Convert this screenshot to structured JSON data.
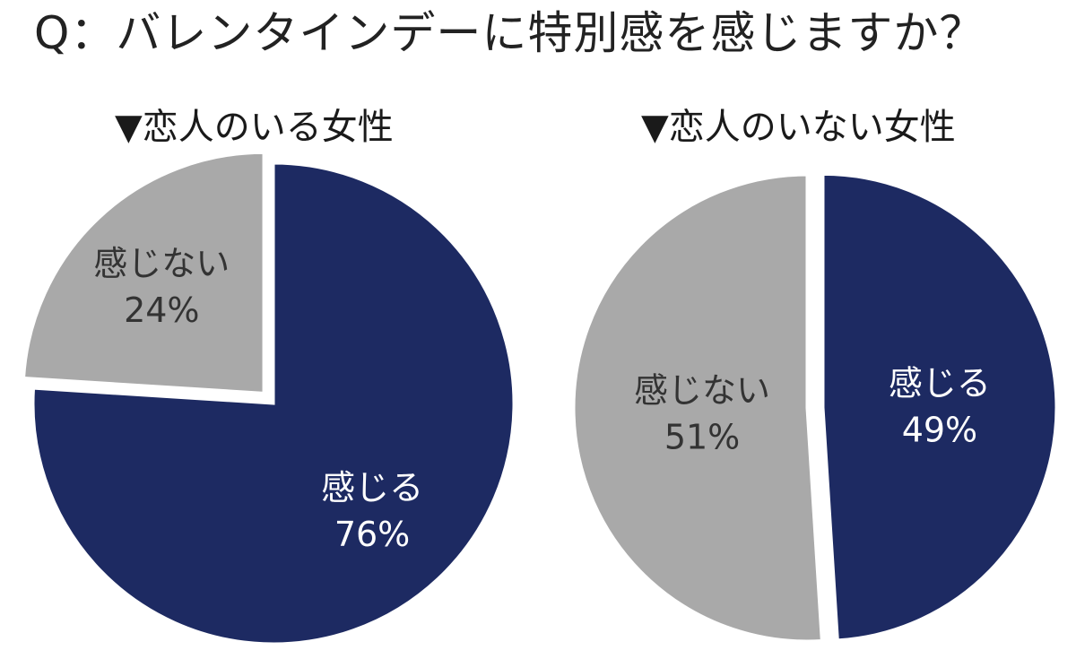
{
  "title": "Q：バレンタインデーに特別感を感じますか？",
  "colors": {
    "feel": "#1d2a62",
    "not_feel": "#a9a9a9",
    "label_on_dark": "#ffffff",
    "label_on_light": "#333333"
  },
  "chart_data": [
    {
      "type": "pie",
      "title": "▼恋人のいる女性",
      "slices": [
        {
          "label": "感じる",
          "value": 76,
          "display": "76%",
          "color": "#1d2a62",
          "exploded": false
        },
        {
          "label": "感じない",
          "value": 24,
          "display": "24%",
          "color": "#a9a9a9",
          "exploded": true
        }
      ]
    },
    {
      "type": "pie",
      "title": "▼恋人のいない女性",
      "slices": [
        {
          "label": "感じる",
          "value": 49,
          "display": "49%",
          "color": "#1d2a62",
          "exploded": true
        },
        {
          "label": "感じない",
          "value": 51,
          "display": "51%",
          "color": "#a9a9a9",
          "exploded": false
        }
      ]
    }
  ]
}
